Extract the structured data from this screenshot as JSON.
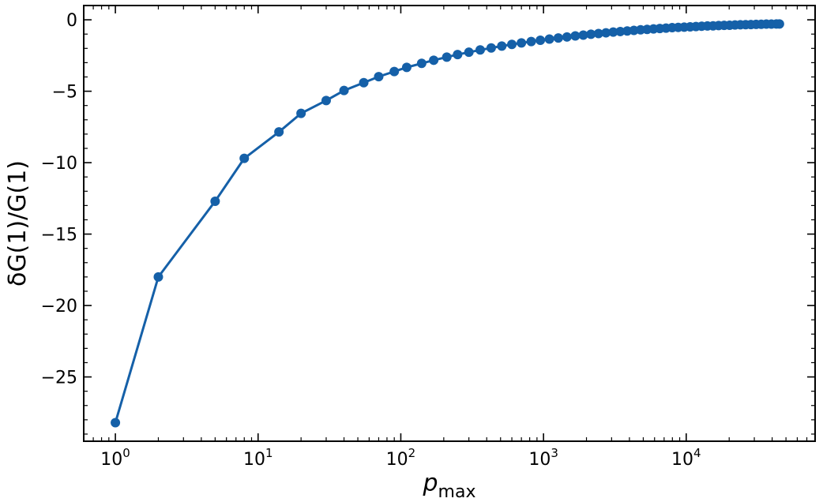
{
  "chart_data": {
    "type": "line",
    "title": "",
    "xlabel": "p",
    "xlabel_subscript": "max",
    "ylabel": "δG(1)/G(1)",
    "xscale": "log",
    "xlim": [
      0.6,
      80000
    ],
    "ylim": [
      -29.5,
      1.0
    ],
    "grid": false,
    "legend": "none",
    "series_color": "#1560a8",
    "x_ticks": [
      {
        "value": 1,
        "base": "10",
        "exp": "0"
      },
      {
        "value": 10,
        "base": "10",
        "exp": "1"
      },
      {
        "value": 100,
        "base": "10",
        "exp": "2"
      },
      {
        "value": 1000,
        "base": "10",
        "exp": "3"
      },
      {
        "value": 10000,
        "base": "10",
        "exp": "4"
      }
    ],
    "y_ticks": [
      {
        "value": 0,
        "label": "0"
      },
      {
        "value": -5,
        "label": "−5"
      },
      {
        "value": -10,
        "label": "−10"
      },
      {
        "value": -15,
        "label": "−15"
      },
      {
        "value": -20,
        "label": "−20"
      },
      {
        "value": -25,
        "label": "−25"
      }
    ],
    "series": [
      {
        "x": [
          1,
          2,
          5,
          8,
          14,
          20,
          30,
          40,
          55,
          70,
          90,
          110,
          140,
          170,
          210,
          250,
          300,
          360,
          430,
          510,
          600,
          700,
          820,
          950,
          1100,
          1270,
          1460,
          1670,
          1900,
          2150,
          2430,
          2740,
          3080,
          3450,
          3860,
          4300,
          4790,
          5320,
          5900,
          6530,
          7220,
          7970,
          8790,
          9680,
          10650,
          11700,
          12840,
          14080,
          15420,
          16870,
          18440,
          20140,
          21970,
          23950,
          26090,
          28390,
          30870,
          33540,
          36420,
          39520,
          42850,
          45000
        ],
        "y": [
          -28.2,
          -18.0,
          -12.7,
          -9.7,
          -7.85,
          -6.55,
          -5.65,
          -4.95,
          -4.4,
          -3.98,
          -3.62,
          -3.33,
          -3.05,
          -2.83,
          -2.61,
          -2.43,
          -2.27,
          -2.11,
          -1.97,
          -1.84,
          -1.72,
          -1.62,
          -1.52,
          -1.43,
          -1.35,
          -1.27,
          -1.2,
          -1.13,
          -1.07,
          -1.01,
          -0.96,
          -0.91,
          -0.86,
          -0.82,
          -0.78,
          -0.74,
          -0.7,
          -0.67,
          -0.64,
          -0.61,
          -0.58,
          -0.55,
          -0.53,
          -0.51,
          -0.49,
          -0.47,
          -0.45,
          -0.43,
          -0.42,
          -0.4,
          -0.39,
          -0.38,
          -0.36,
          -0.35,
          -0.34,
          -0.33,
          -0.32,
          -0.31,
          -0.3,
          -0.3,
          -0.29,
          -0.29
        ]
      }
    ]
  }
}
